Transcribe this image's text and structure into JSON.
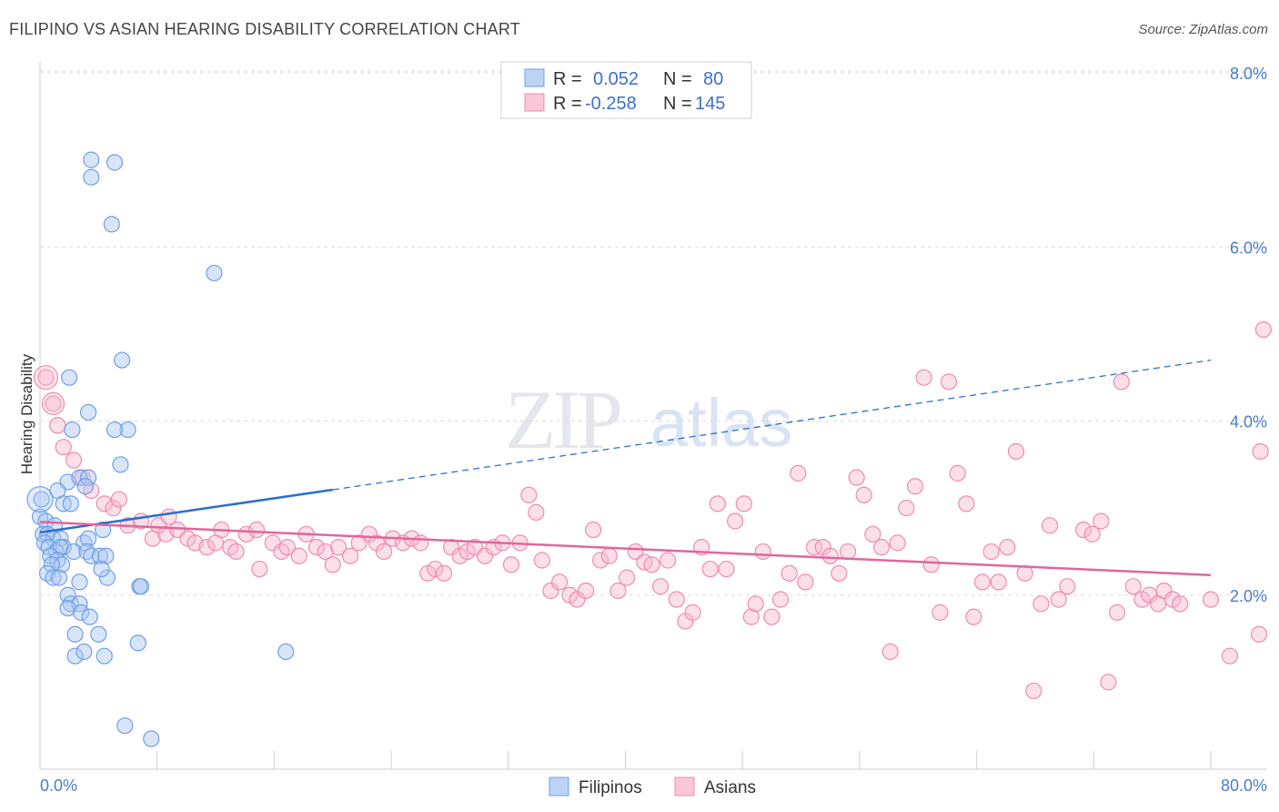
{
  "title": "FILIPINO VS ASIAN HEARING DISABILITY CORRELATION CHART",
  "source": "Source: ZipAtlas.com",
  "colors": {
    "blue": "#6f9fe6",
    "blue_line": "#2a6fcf",
    "pink": "#f08bb0",
    "pink_line": "#e0679a",
    "tick": "#4a7cc9"
  },
  "chart_data": {
    "type": "scatter",
    "title": "FILIPINO VS ASIAN HEARING DISABILITY CORRELATION CHART",
    "xlabel": "",
    "ylabel": "Hearing Disability",
    "xlim": [
      0,
      80
    ],
    "ylim": [
      0,
      8
    ],
    "x_tick_labels": [
      "0.0%",
      "80.0%"
    ],
    "y_ticks": [
      2,
      4,
      6,
      8
    ],
    "y_tick_labels": [
      "2.0%",
      "4.0%",
      "6.0%",
      "8.0%"
    ],
    "grid": true,
    "legend_position": "top-center",
    "stats": [
      {
        "r_label": "R =",
        "r_value": "0.052",
        "n_label": "N =",
        "n_value": "80"
      },
      {
        "r_label": "R =",
        "r_value": "-0.258",
        "n_label": "N =",
        "n_value": "145"
      }
    ],
    "series": [
      {
        "name": "Filipinos",
        "color": "#6f9fe6",
        "trend": {
          "x": [
            0,
            20,
            80
          ],
          "y": [
            2.72,
            3.21,
            4.7
          ]
        },
        "points": [
          [
            3.5,
            7.0
          ],
          [
            5.1,
            6.97
          ],
          [
            3.5,
            6.8
          ],
          [
            4.9,
            6.26
          ],
          [
            11.9,
            5.7
          ],
          [
            5.6,
            4.7
          ],
          [
            2.0,
            4.5
          ],
          [
            3.3,
            4.1
          ],
          [
            2.2,
            3.9
          ],
          [
            6.0,
            3.9
          ],
          [
            5.1,
            3.9
          ],
          [
            5.5,
            3.5
          ],
          [
            1.9,
            3.3
          ],
          [
            2.7,
            3.35
          ],
          [
            3.3,
            3.35
          ],
          [
            1.2,
            3.2
          ],
          [
            3.1,
            3.25
          ],
          [
            0.1,
            3.1
          ],
          [
            1.6,
            3.05
          ],
          [
            2.1,
            3.05
          ],
          [
            0.0,
            2.9
          ],
          [
            0.4,
            2.85
          ],
          [
            1.0,
            2.8
          ],
          [
            0.2,
            2.7
          ],
          [
            0.5,
            2.7
          ],
          [
            0.9,
            2.65
          ],
          [
            1.4,
            2.65
          ],
          [
            3.0,
            2.6
          ],
          [
            3.3,
            2.65
          ],
          [
            4.3,
            2.75
          ],
          [
            0.3,
            2.6
          ],
          [
            0.6,
            2.55
          ],
          [
            1.6,
            2.55
          ],
          [
            1.1,
            2.5
          ],
          [
            1.4,
            2.55
          ],
          [
            0.7,
            2.45
          ],
          [
            2.3,
            2.5
          ],
          [
            3.2,
            2.5
          ],
          [
            3.5,
            2.45
          ],
          [
            4.1,
            2.45
          ],
          [
            4.5,
            2.45
          ],
          [
            1.2,
            2.4
          ],
          [
            1.5,
            2.35
          ],
          [
            0.8,
            2.35
          ],
          [
            0.5,
            2.25
          ],
          [
            0.9,
            2.2
          ],
          [
            1.3,
            2.2
          ],
          [
            2.7,
            2.15
          ],
          [
            4.6,
            2.2
          ],
          [
            4.2,
            2.3
          ],
          [
            6.8,
            2.1
          ],
          [
            6.9,
            2.1
          ],
          [
            1.9,
            2.0
          ],
          [
            2.1,
            1.9
          ],
          [
            2.7,
            1.9
          ],
          [
            1.9,
            1.85
          ],
          [
            2.8,
            1.8
          ],
          [
            3.4,
            1.75
          ],
          [
            2.4,
            1.55
          ],
          [
            4.0,
            1.55
          ],
          [
            6.7,
            1.45
          ],
          [
            2.4,
            1.3
          ],
          [
            3.0,
            1.35
          ],
          [
            4.4,
            1.3
          ],
          [
            16.8,
            1.35
          ],
          [
            5.8,
            0.5
          ],
          [
            7.6,
            0.35
          ]
        ]
      },
      {
        "name": "Asians",
        "color": "#f08bb0",
        "trend": {
          "x": [
            0,
            80
          ],
          "y": [
            2.84,
            2.23
          ]
        },
        "points": [
          [
            0.4,
            4.5
          ],
          [
            0.9,
            4.2
          ],
          [
            1.2,
            3.95
          ],
          [
            1.6,
            3.7
          ],
          [
            2.3,
            3.55
          ],
          [
            2.9,
            3.35
          ],
          [
            3.5,
            3.2
          ],
          [
            4.4,
            3.05
          ],
          [
            5.0,
            3.0
          ],
          [
            5.4,
            3.1
          ],
          [
            6.0,
            2.8
          ],
          [
            6.9,
            2.85
          ],
          [
            7.7,
            2.65
          ],
          [
            8.1,
            2.8
          ],
          [
            8.6,
            2.7
          ],
          [
            8.8,
            2.9
          ],
          [
            9.4,
            2.75
          ],
          [
            10.1,
            2.65
          ],
          [
            10.6,
            2.6
          ],
          [
            11.4,
            2.55
          ],
          [
            12.0,
            2.6
          ],
          [
            12.4,
            2.75
          ],
          [
            13.0,
            2.55
          ],
          [
            13.4,
            2.5
          ],
          [
            14.1,
            2.7
          ],
          [
            14.8,
            2.75
          ],
          [
            15.0,
            2.3
          ],
          [
            15.9,
            2.6
          ],
          [
            16.5,
            2.5
          ],
          [
            16.9,
            2.55
          ],
          [
            17.7,
            2.45
          ],
          [
            18.2,
            2.7
          ],
          [
            18.9,
            2.55
          ],
          [
            19.5,
            2.5
          ],
          [
            20.0,
            2.35
          ],
          [
            20.4,
            2.55
          ],
          [
            21.2,
            2.45
          ],
          [
            21.8,
            2.6
          ],
          [
            22.5,
            2.7
          ],
          [
            23.0,
            2.6
          ],
          [
            23.5,
            2.5
          ],
          [
            24.1,
            2.65
          ],
          [
            24.8,
            2.6
          ],
          [
            25.4,
            2.65
          ],
          [
            26.0,
            2.6
          ],
          [
            26.5,
            2.25
          ],
          [
            27.0,
            2.3
          ],
          [
            27.6,
            2.25
          ],
          [
            28.1,
            2.55
          ],
          [
            28.7,
            2.45
          ],
          [
            29.2,
            2.5
          ],
          [
            29.7,
            2.55
          ],
          [
            30.4,
            2.45
          ],
          [
            31.0,
            2.55
          ],
          [
            31.6,
            2.6
          ],
          [
            32.2,
            2.35
          ],
          [
            32.8,
            2.6
          ],
          [
            33.4,
            3.15
          ],
          [
            33.9,
            2.95
          ],
          [
            34.3,
            2.4
          ],
          [
            34.9,
            2.05
          ],
          [
            35.5,
            2.15
          ],
          [
            36.2,
            2.0
          ],
          [
            36.7,
            1.95
          ],
          [
            37.3,
            2.05
          ],
          [
            37.8,
            2.75
          ],
          [
            38.3,
            2.4
          ],
          [
            38.9,
            2.45
          ],
          [
            39.5,
            2.05
          ],
          [
            40.1,
            2.2
          ],
          [
            40.7,
            2.5
          ],
          [
            41.3,
            2.38
          ],
          [
            41.8,
            2.35
          ],
          [
            42.4,
            2.1
          ],
          [
            42.9,
            2.4
          ],
          [
            43.5,
            1.95
          ],
          [
            44.1,
            1.7
          ],
          [
            44.6,
            1.8
          ],
          [
            45.2,
            2.55
          ],
          [
            45.8,
            2.3
          ],
          [
            46.3,
            3.05
          ],
          [
            46.9,
            2.3
          ],
          [
            47.5,
            2.85
          ],
          [
            48.1,
            3.05
          ],
          [
            48.6,
            1.75
          ],
          [
            48.9,
            1.9
          ],
          [
            49.4,
            2.5
          ],
          [
            50.0,
            1.75
          ],
          [
            50.6,
            1.95
          ],
          [
            51.2,
            2.25
          ],
          [
            51.8,
            3.4
          ],
          [
            52.3,
            2.15
          ],
          [
            52.9,
            2.55
          ],
          [
            53.5,
            2.55
          ],
          [
            54.0,
            2.45
          ],
          [
            54.6,
            2.25
          ],
          [
            55.2,
            2.5
          ],
          [
            55.8,
            3.35
          ],
          [
            56.3,
            3.15
          ],
          [
            56.9,
            2.7
          ],
          [
            57.5,
            2.55
          ],
          [
            58.1,
            1.35
          ],
          [
            58.6,
            2.6
          ],
          [
            59.2,
            3.0
          ],
          [
            59.8,
            3.25
          ],
          [
            60.4,
            4.5
          ],
          [
            60.9,
            2.35
          ],
          [
            61.5,
            1.8
          ],
          [
            62.1,
            4.45
          ],
          [
            62.7,
            3.4
          ],
          [
            63.3,
            3.05
          ],
          [
            63.8,
            1.75
          ],
          [
            64.4,
            2.15
          ],
          [
            65.0,
            2.5
          ],
          [
            65.5,
            2.15
          ],
          [
            66.1,
            2.55
          ],
          [
            66.7,
            3.65
          ],
          [
            67.3,
            2.25
          ],
          [
            67.9,
            0.9
          ],
          [
            68.4,
            1.9
          ],
          [
            69.0,
            2.8
          ],
          [
            69.6,
            1.95
          ],
          [
            70.2,
            2.1
          ],
          [
            71.3,
            2.75
          ],
          [
            71.9,
            2.7
          ],
          [
            72.5,
            2.85
          ],
          [
            73.0,
            1.0
          ],
          [
            73.6,
            1.8
          ],
          [
            73.9,
            4.45
          ],
          [
            74.7,
            2.1
          ],
          [
            75.3,
            1.95
          ],
          [
            75.8,
            2.0
          ],
          [
            76.4,
            1.9
          ],
          [
            76.8,
            2.05
          ],
          [
            77.4,
            1.95
          ],
          [
            77.9,
            1.9
          ],
          [
            80.0,
            1.95
          ],
          [
            81.3,
            1.3
          ],
          [
            83.3,
            1.55
          ],
          [
            83.6,
            5.05
          ],
          [
            83.4,
            3.65
          ]
        ]
      }
    ]
  },
  "legend": {
    "items": [
      "Filipinos",
      "Asians"
    ]
  },
  "watermark": {
    "zip": "ZIP",
    "atlas": "atlas"
  }
}
